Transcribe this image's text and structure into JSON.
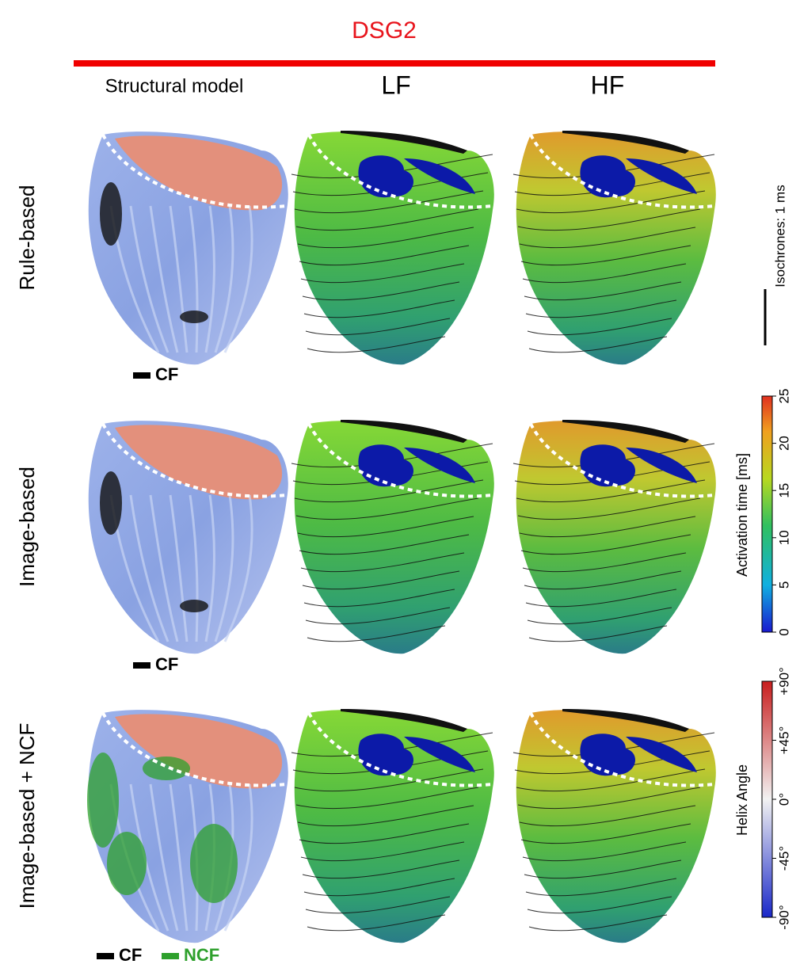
{
  "header": {
    "title": "DSG2"
  },
  "columns": [
    "Structural model",
    "LF",
    "HF"
  ],
  "rows": [
    "Rule-based",
    "Image-based",
    "Image-based + NCF"
  ],
  "structural_legends": [
    [
      "CF"
    ],
    [
      "CF"
    ],
    [
      "CF",
      "NCF"
    ]
  ],
  "isochrones": "Isochrones: 1 ms",
  "activation_colorbar": {
    "label": "Activation time [ms]",
    "ticks": [
      0,
      5,
      10,
      15,
      20,
      25
    ]
  },
  "helix_colorbar": {
    "label": "Helix Angle",
    "ticks": [
      "-90°",
      "-45°",
      "0°",
      "+45°",
      "+90°"
    ]
  }
}
